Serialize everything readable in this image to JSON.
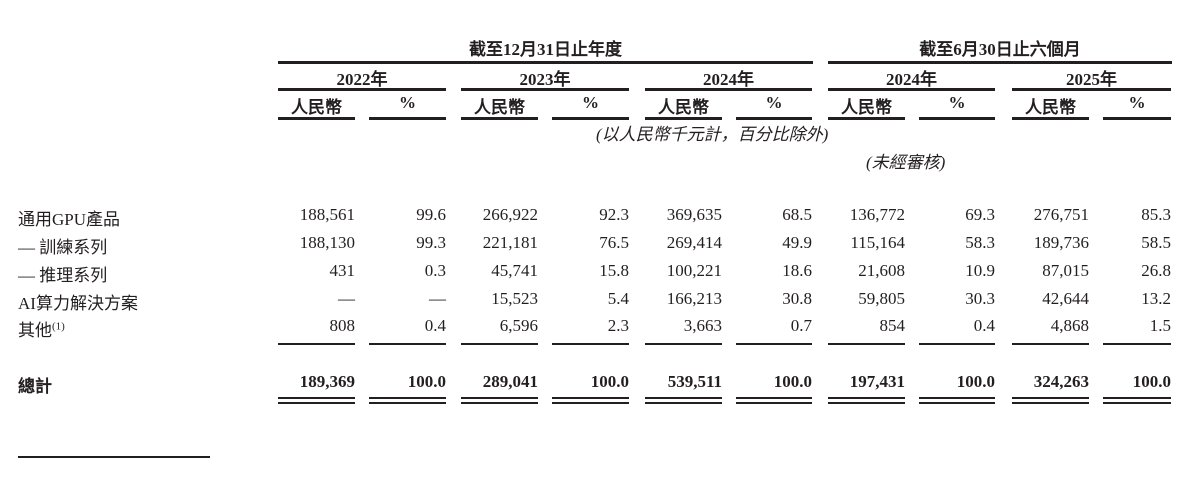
{
  "header": {
    "group_annual": "截至12月31日止年度",
    "group_interim": "截至6月30日止六個月",
    "years": [
      "2022年",
      "2023年",
      "2024年",
      "2024年",
      "2025年"
    ],
    "rmb_label": "人民幣",
    "pct_label": "%",
    "unit_note": "(以人民幣千元計，百分比除外)",
    "unaudited_note": "(未經審核)"
  },
  "rows": [
    {
      "label": "通用GPU產品",
      "values": [
        "188,561",
        "99.6",
        "266,922",
        "92.3",
        "369,635",
        "68.5",
        "136,772",
        "69.3",
        "276,751",
        "85.3"
      ]
    },
    {
      "label": "— 訓練系列",
      "values": [
        "188,130",
        "99.3",
        "221,181",
        "76.5",
        "269,414",
        "49.9",
        "115,164",
        "58.3",
        "189,736",
        "58.5"
      ]
    },
    {
      "label": "— 推理系列",
      "values": [
        "431",
        "0.3",
        "45,741",
        "15.8",
        "100,221",
        "18.6",
        "21,608",
        "10.9",
        "87,015",
        "26.8"
      ]
    },
    {
      "label": "AI算力解決方案",
      "values": [
        "—",
        "—",
        "15,523",
        "5.4",
        "166,213",
        "30.8",
        "59,805",
        "30.3",
        "42,644",
        "13.2"
      ]
    },
    {
      "label": "其他",
      "footnote": "(1)",
      "values": [
        "808",
        "0.4",
        "6,596",
        "2.3",
        "3,663",
        "0.7",
        "854",
        "0.4",
        "4,868",
        "1.5"
      ]
    }
  ],
  "total": {
    "label": "總計",
    "values": [
      "189,369",
      "100.0",
      "289,041",
      "100.0",
      "539,511",
      "100.0",
      "197,431",
      "100.0",
      "324,263",
      "100.0"
    ]
  }
}
